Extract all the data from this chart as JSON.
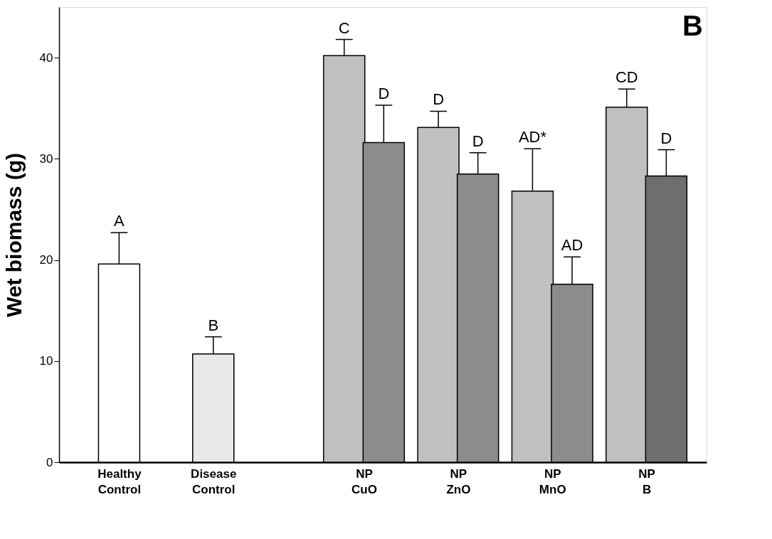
{
  "chart_data": {
    "type": "bar",
    "ylabel": "Wet biomass (g)",
    "categories": [
      "Healthy Control",
      "Disease Control",
      "NP CuO",
      "NP ZnO",
      "NP MnO",
      "NP B"
    ],
    "series": [
      {
        "colors": [
          "#ffffff",
          null,
          "#c0c0c0",
          "#c0c0c0",
          "#c0c0c0",
          "#c0c0c0"
        ],
        "values": [
          19.6,
          null,
          40.2,
          33.1,
          26.8,
          35.1
        ],
        "errors": [
          [
            19.6,
            22.7
          ],
          null,
          [
            40.2,
            41.8
          ],
          [
            33.1,
            34.7
          ],
          [
            26.8,
            31.0
          ],
          [
            35.1,
            36.9
          ]
        ]
      },
      {
        "colors": [
          null,
          "#e8e8e8",
          "#8c8c8c",
          "#8c8c8c",
          "#8c8c8c",
          "#6e6e6e"
        ],
        "values": [
          null,
          10.7,
          31.6,
          28.5,
          17.6,
          28.3
        ],
        "errors": [
          null,
          [
            10.7,
            12.4
          ],
          [
            31.6,
            35.3
          ],
          [
            28.5,
            30.6
          ],
          [
            17.6,
            20.3
          ],
          [
            28.3,
            30.9
          ]
        ]
      }
    ],
    "ylim": [
      0,
      45
    ],
    "yticks": [
      0,
      10,
      20,
      30,
      40
    ],
    "grid": false,
    "annotations": [
      "A",
      "B",
      "C",
      "D",
      "D",
      "D",
      "AD*",
      "AD",
      "CD",
      "D",
      "B"
    ]
  }
}
